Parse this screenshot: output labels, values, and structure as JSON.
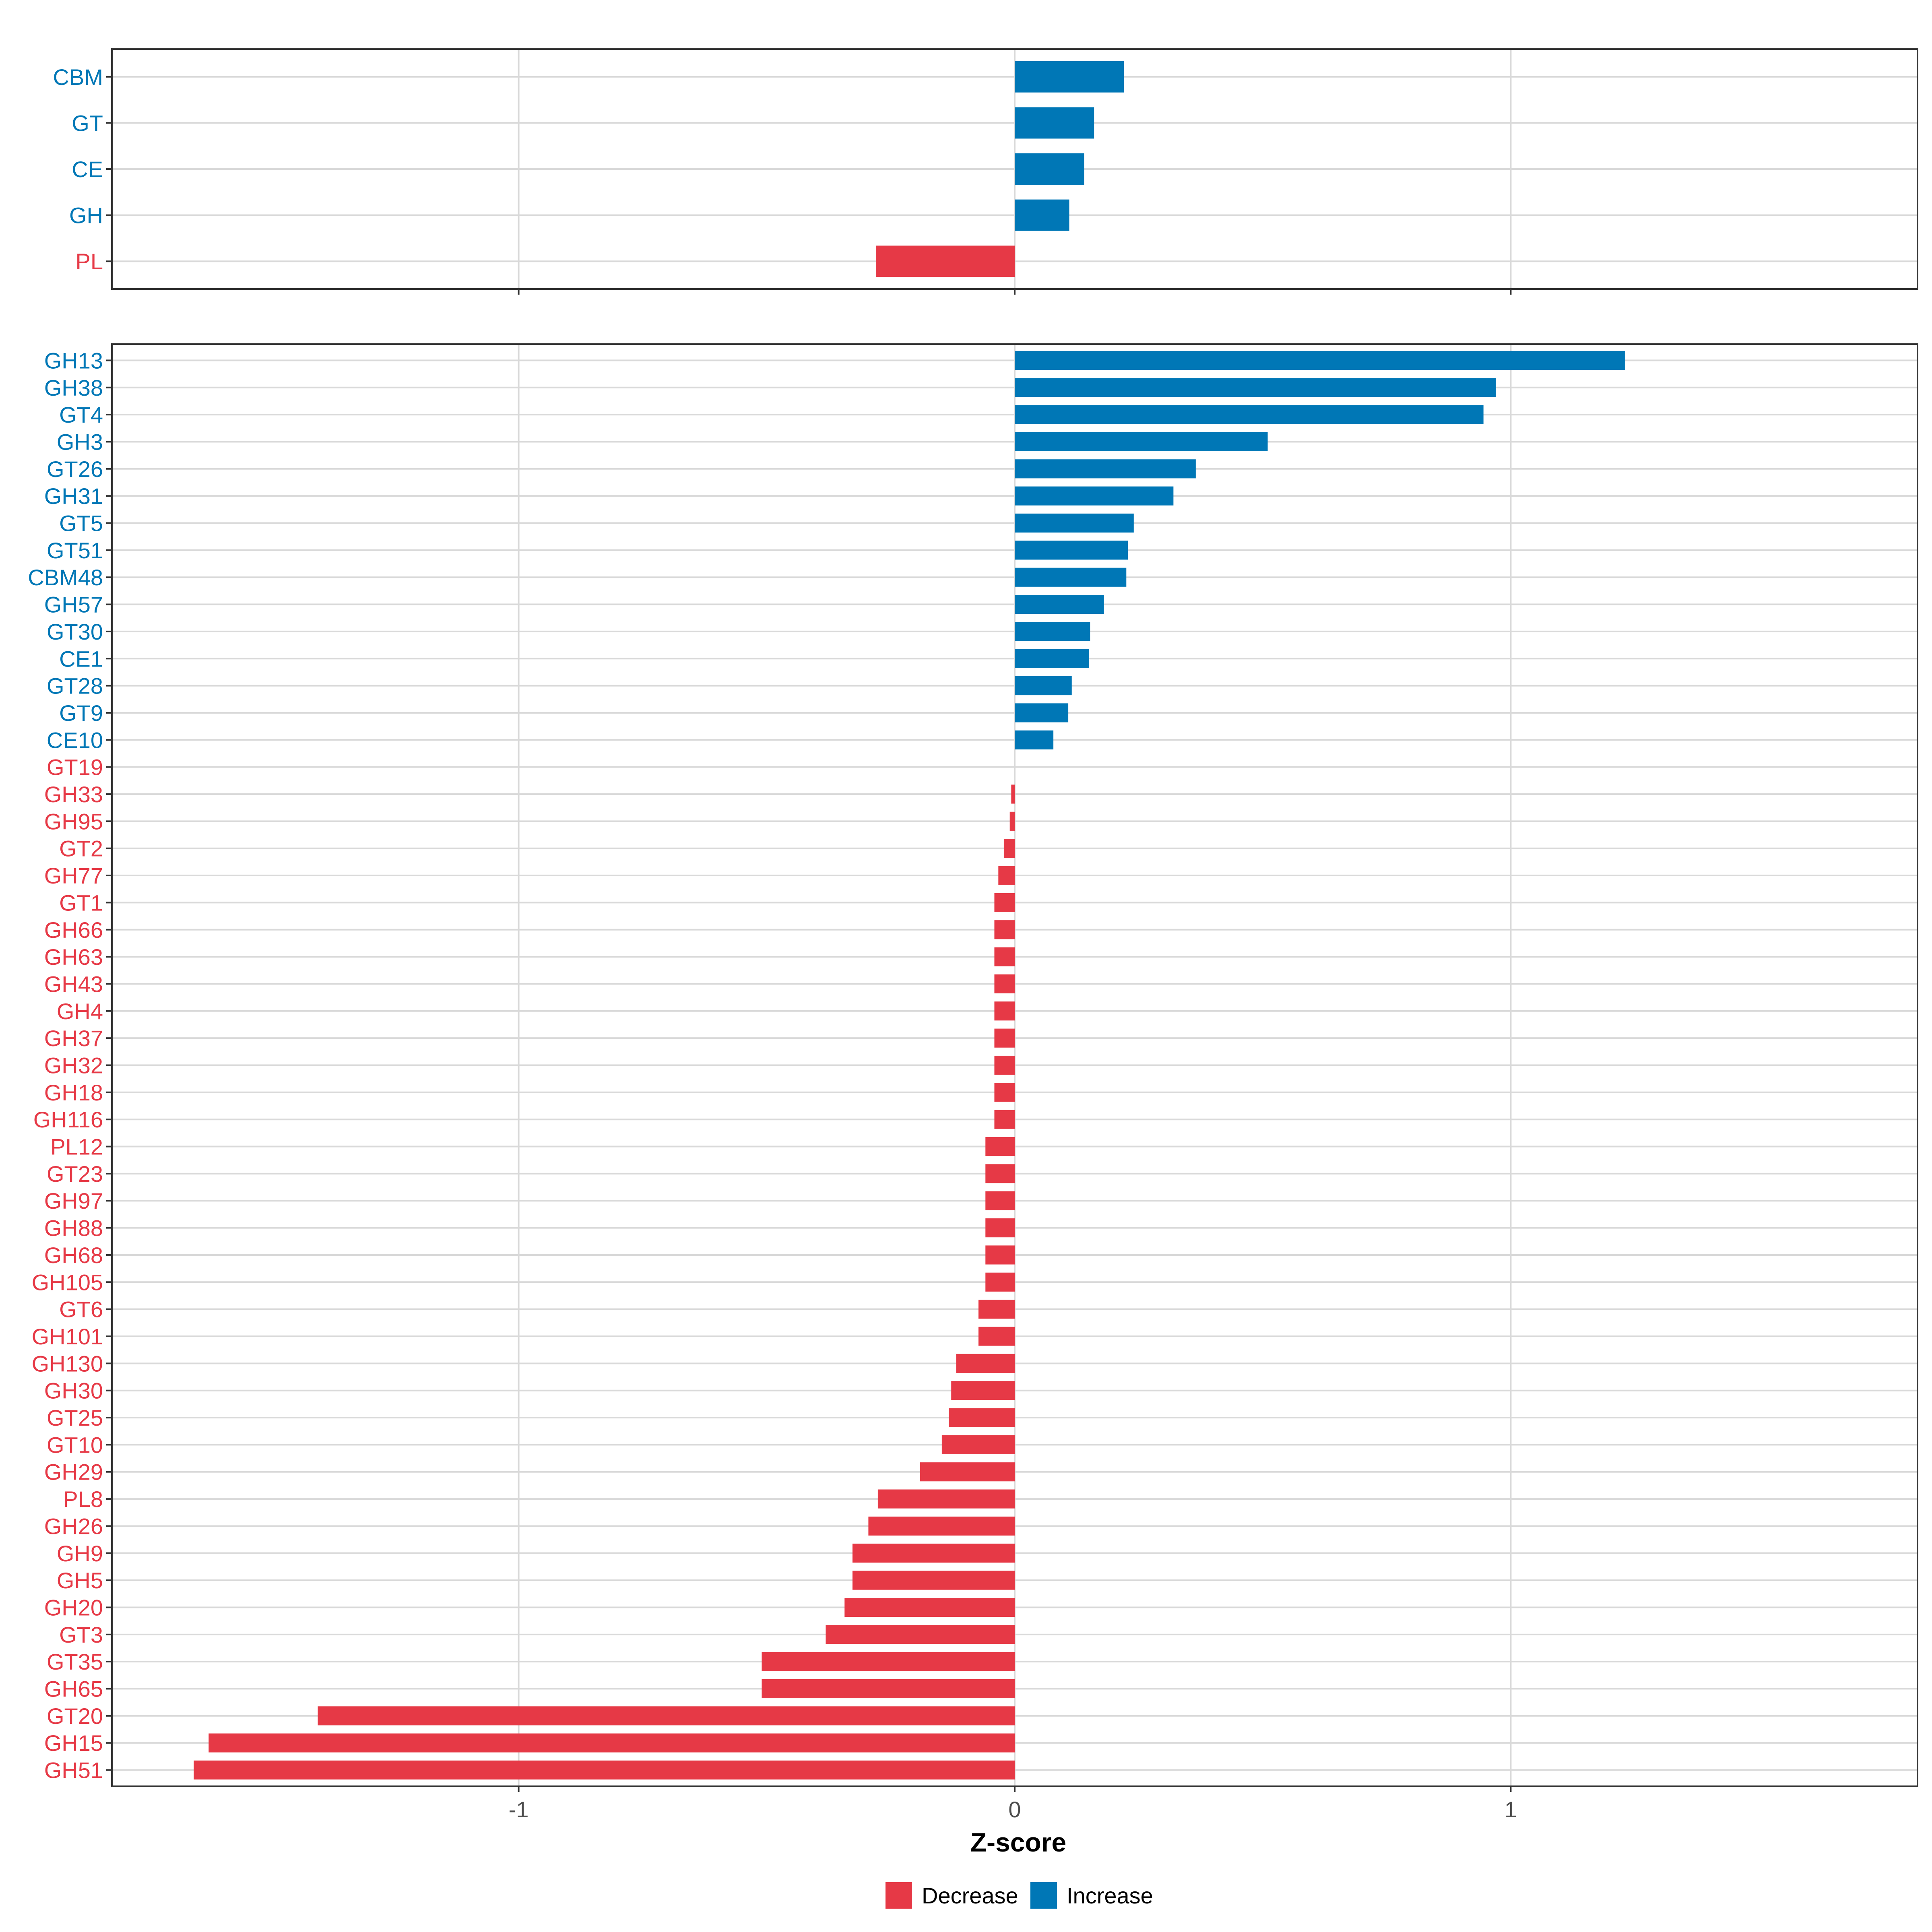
{
  "colors": {
    "decrease": "#E63946",
    "increase": "#0077B6"
  },
  "chart_data": [
    {
      "type": "bar",
      "orientation": "horizontal",
      "title": "",
      "xlabel": "Z-score",
      "ylabel": "",
      "xlim": [
        -1.82,
        1.82
      ],
      "xticks": [
        -1,
        0,
        1
      ],
      "xtick_labels": [
        "-1",
        "0",
        "1"
      ],
      "grid": true,
      "categories": [
        "CBM",
        "GT",
        "CE",
        "GH",
        "PL"
      ],
      "values": [
        0.22,
        0.16,
        0.14,
        0.11,
        -0.28
      ],
      "groups": [
        "Increase",
        "Increase",
        "Increase",
        "Increase",
        "Decrease"
      ]
    },
    {
      "type": "bar",
      "orientation": "horizontal",
      "title": "",
      "xlabel": "Z-score",
      "ylabel": "",
      "xlim": [
        -1.82,
        1.82
      ],
      "xticks": [
        -1,
        0,
        1
      ],
      "xtick_labels": [
        "-1",
        "0",
        "1"
      ],
      "grid": true,
      "categories": [
        "GH13",
        "GH38",
        "GT4",
        "GH3",
        "GT26",
        "GH31",
        "GT5",
        "GT51",
        "CBM48",
        "GH57",
        "GT30",
        "CE1",
        "GT28",
        "GT9",
        "CE10",
        "GT19",
        "GH33",
        "GH95",
        "GT2",
        "GH77",
        "GT1",
        "GH66",
        "GH63",
        "GH43",
        "GH4",
        "GH37",
        "GH32",
        "GH18",
        "GH116",
        "PL12",
        "GT23",
        "GH97",
        "GH88",
        "GH68",
        "GH105",
        "GT6",
        "GH101",
        "GH130",
        "GH30",
        "GT25",
        "GT10",
        "GH29",
        "PL8",
        "GH26",
        "GH9",
        "GH5",
        "GH20",
        "GT3",
        "GT35",
        "GH65",
        "GT20",
        "GH15",
        "GH51"
      ],
      "values": [
        1.23,
        0.97,
        0.945,
        0.51,
        0.365,
        0.32,
        0.24,
        0.228,
        0.225,
        0.18,
        0.152,
        0.15,
        0.115,
        0.108,
        0.078,
        0.0,
        -0.007,
        -0.01,
        -0.022,
        -0.033,
        -0.041,
        -0.041,
        -0.041,
        -0.041,
        -0.041,
        -0.041,
        -0.041,
        -0.041,
        -0.041,
        -0.059,
        -0.059,
        -0.059,
        -0.059,
        -0.059,
        -0.059,
        -0.073,
        -0.073,
        -0.118,
        -0.128,
        -0.133,
        -0.147,
        -0.191,
        -0.276,
        -0.295,
        -0.327,
        -0.327,
        -0.343,
        -0.381,
        -0.51,
        -0.51,
        -1.405,
        -1.625,
        -1.655
      ],
      "groups": [
        "Increase",
        "Increase",
        "Increase",
        "Increase",
        "Increase",
        "Increase",
        "Increase",
        "Increase",
        "Increase",
        "Increase",
        "Increase",
        "Increase",
        "Increase",
        "Increase",
        "Increase",
        "Decrease",
        "Decrease",
        "Decrease",
        "Decrease",
        "Decrease",
        "Decrease",
        "Decrease",
        "Decrease",
        "Decrease",
        "Decrease",
        "Decrease",
        "Decrease",
        "Decrease",
        "Decrease",
        "Decrease",
        "Decrease",
        "Decrease",
        "Decrease",
        "Decrease",
        "Decrease",
        "Decrease",
        "Decrease",
        "Decrease",
        "Decrease",
        "Decrease",
        "Decrease",
        "Decrease",
        "Decrease",
        "Decrease",
        "Decrease",
        "Decrease",
        "Decrease",
        "Decrease",
        "Decrease",
        "Decrease",
        "Decrease",
        "Decrease",
        "Decrease"
      ]
    }
  ],
  "legend": {
    "placement": "bottom",
    "items": [
      {
        "label": "Decrease",
        "color_key": "decrease"
      },
      {
        "label": "Increase",
        "color_key": "increase"
      }
    ]
  }
}
